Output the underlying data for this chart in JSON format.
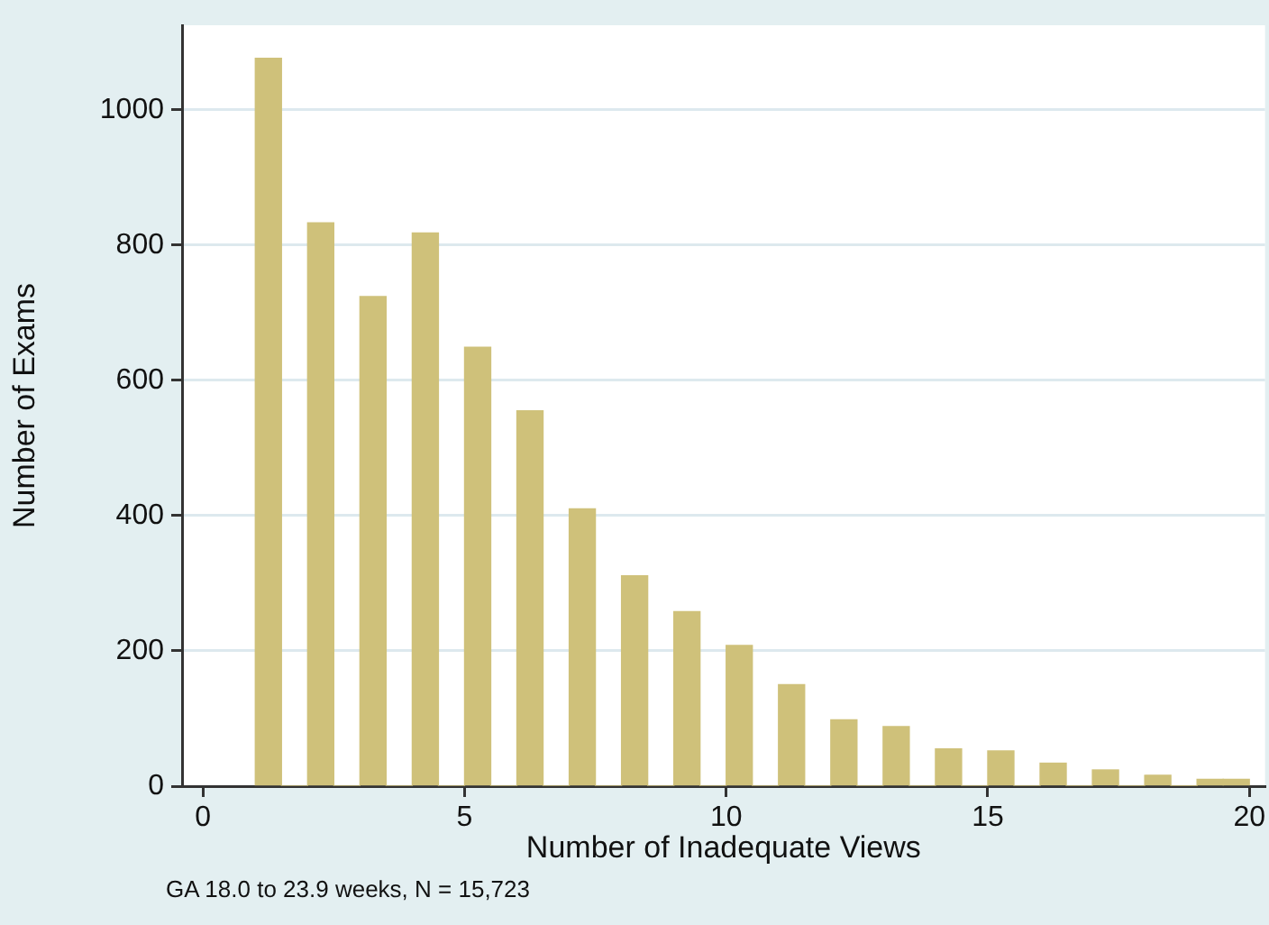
{
  "chart_data": {
    "type": "histogram",
    "xlabel": "Number of Inadequate Views",
    "ylabel": "Number of Exams",
    "annotations": [
      "GA 18.0 to 23.9 weeks, N = 15,723"
    ],
    "bins": [
      1,
      1.5,
      2,
      2.5,
      3,
      3.5,
      4,
      4.5,
      5,
      5.5,
      6,
      6.5,
      7,
      7.5,
      8,
      8.5,
      9,
      9.5,
      10,
      10.5,
      11,
      11.5,
      12,
      12.5,
      13,
      13.5,
      14,
      14.5,
      15,
      15.5,
      16,
      16.5,
      17,
      17.5,
      18,
      18.5,
      19,
      19.5,
      20
    ],
    "values": [
      1076,
      0,
      833,
      0,
      724,
      0,
      818,
      0,
      649,
      0,
      555,
      0,
      410,
      0,
      311,
      0,
      258,
      0,
      208,
      0,
      150,
      0,
      98,
      0,
      88,
      0,
      55,
      0,
      52,
      0,
      34,
      0,
      24,
      0,
      16,
      0,
      10,
      10
    ],
    "color": "#cfc17a",
    "xlim": [
      -0.4,
      20.3
    ],
    "xticks": [
      0,
      5,
      10,
      15,
      20
    ],
    "ylim": [
      0,
      1125
    ],
    "yticks": [
      0,
      200,
      400,
      600,
      800,
      1000
    ],
    "grid": "y",
    "legend": false
  }
}
